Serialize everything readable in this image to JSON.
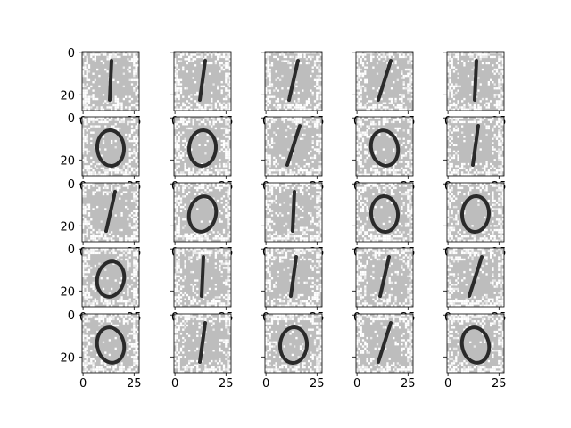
{
  "figure": {
    "type": "image-grid",
    "rows": 5,
    "cols": 5,
    "y_ticks": [
      "0",
      "20"
    ],
    "x_ticks": [
      "0",
      "25"
    ],
    "sharey": true,
    "sharex": true,
    "digits": [
      [
        "1",
        "1",
        "1",
        "1",
        "1"
      ],
      [
        "0",
        "0",
        "1",
        "0",
        "1"
      ],
      [
        "1",
        "0",
        "1",
        "0",
        "0"
      ],
      [
        "0",
        "1",
        "1",
        "1",
        "1"
      ],
      [
        "0",
        "1",
        "0",
        "1",
        "0"
      ]
    ],
    "colors": {
      "background": "#ffffff",
      "panel_light": "#bdbdbd",
      "panel_noise": "#e8e8e8",
      "stroke": "#2a2a2a",
      "axis": "#000000"
    }
  }
}
